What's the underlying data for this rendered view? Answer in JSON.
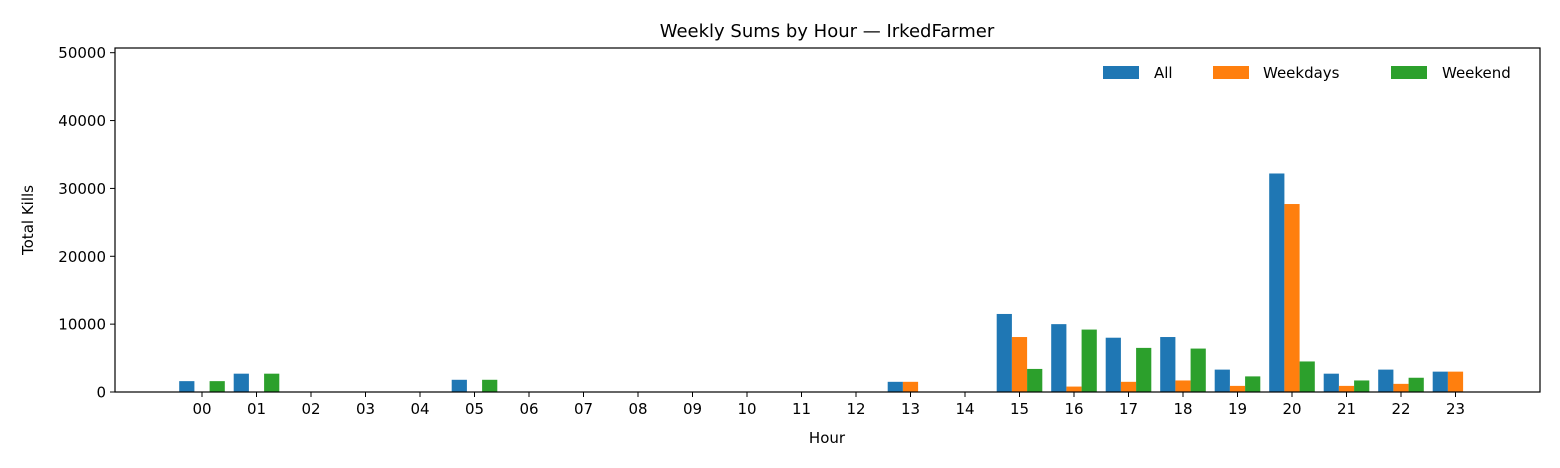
{
  "chart_data": {
    "type": "bar",
    "title": "Weekly Sums by Hour — IrkedFarmer",
    "xlabel": "Hour",
    "ylabel": "Total Kills",
    "ylim": [
      0,
      50000
    ],
    "yticks": [
      0,
      10000,
      20000,
      30000,
      40000,
      50000
    ],
    "ytick_labels": [
      "0",
      "10000",
      "20000",
      "30000",
      "40000",
      "50000"
    ],
    "grid": false,
    "legend_position": "top-right",
    "categories": [
      "00",
      "01",
      "02",
      "03",
      "04",
      "05",
      "06",
      "07",
      "08",
      "09",
      "10",
      "11",
      "12",
      "13",
      "14",
      "15",
      "16",
      "17",
      "18",
      "19",
      "20",
      "21",
      "22",
      "23"
    ],
    "series": [
      {
        "name": "All",
        "color": "#1f77b4",
        "values": [
          1600,
          2700,
          0,
          0,
          0,
          1800,
          0,
          0,
          0,
          0,
          0,
          0,
          0,
          1500,
          0,
          11500,
          10000,
          8000,
          8100,
          3300,
          32200,
          2700,
          3300,
          3000
        ]
      },
      {
        "name": "Weekdays",
        "color": "#ff7f0e",
        "values": [
          0,
          0,
          0,
          0,
          0,
          0,
          0,
          0,
          0,
          0,
          0,
          0,
          0,
          1500,
          0,
          8100,
          800,
          1500,
          1700,
          900,
          27700,
          900,
          1200,
          3000
        ]
      },
      {
        "name": "Weekend",
        "color": "#2ca02c",
        "values": [
          1600,
          2700,
          0,
          0,
          0,
          1800,
          0,
          0,
          0,
          0,
          0,
          0,
          0,
          0,
          0,
          3400,
          9200,
          6500,
          6400,
          2300,
          4500,
          1700,
          2100,
          0
        ]
      }
    ]
  }
}
